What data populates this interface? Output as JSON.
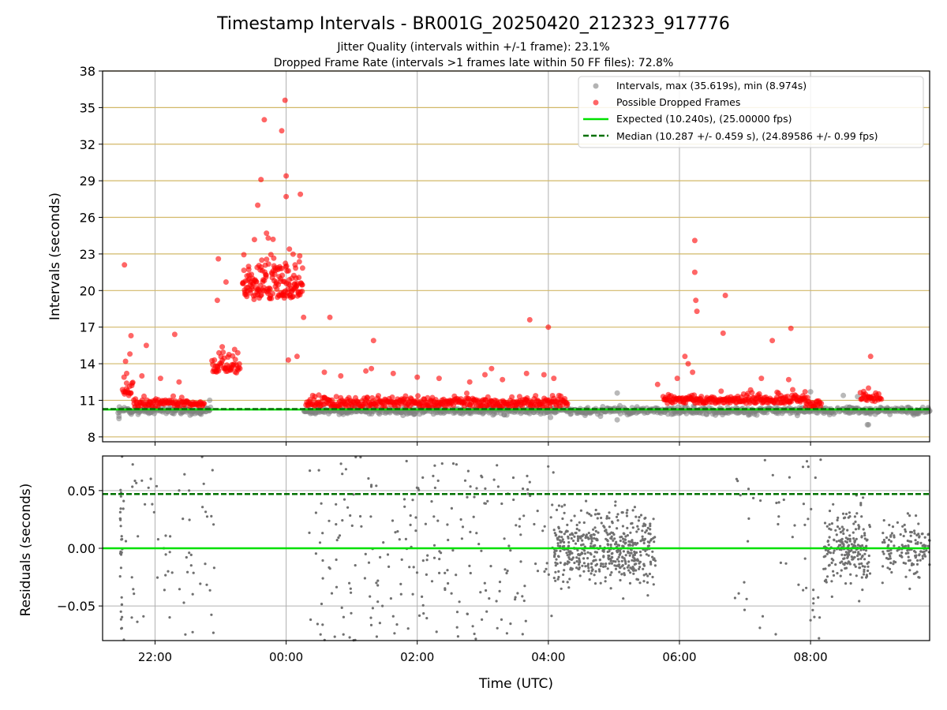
{
  "figure": {
    "title": "Timestamp Intervals - BR001G_20250420_212323_917776",
    "subtitle_1": "Jitter Quality (intervals within +/-1 frame): 23.1%",
    "subtitle_2": "Dropped Frame Rate (intervals >1 frames late within 50 FF files): 72.8%"
  },
  "chart_data": [
    {
      "type": "scatter",
      "ylabel": "Intervals (seconds)",
      "xlabel": "",
      "ylim": [
        7.6,
        38
      ],
      "xlim": [
        "21:12",
        "09:49"
      ],
      "yticks": [
        8,
        11,
        14,
        17,
        20,
        23,
        26,
        29,
        32,
        35,
        38
      ],
      "grid": "x-vertical grey, y-horizontal gold",
      "legend_position": "top-right",
      "legend": [
        "Intervals, max (35.619s), min (8.974s)",
        "Possible Dropped Frames",
        "Expected (10.240s), (25.00000 fps)",
        "Median (10.287 +/- 0.459 s), (24.89586 +/- 0.99 fps)"
      ],
      "series": [
        {
          "name": "Intervals, max (35.619s), min (8.974s)",
          "color": "#808080",
          "kind": "points"
        },
        {
          "name": "Possible Dropped Frames",
          "color": "#ff0000",
          "kind": "points"
        },
        {
          "name": "Expected (10.240s), (25.00000 fps)",
          "color": "#00e000",
          "kind": "hline",
          "y": 10.24
        },
        {
          "name": "Median (10.287 +/- 0.459 s), (24.89586 +/- 0.99 fps)",
          "color": "#007000",
          "kind": "hline-dashed",
          "y": 10.287
        }
      ],
      "notable_points": [
        {
          "x": "21:32",
          "y": 22.1
        },
        {
          "x": "23:34",
          "y": 27.0
        },
        {
          "x": "23:37",
          "y": 29.1
        },
        {
          "x": "23:40",
          "y": 34.0
        },
        {
          "x": "23:56",
          "y": 33.1
        },
        {
          "x": "23:59",
          "y": 35.6
        },
        {
          "x": "00:00",
          "y": 29.4
        },
        {
          "x": "00:00",
          "y": 27.7
        },
        {
          "x": "00:13",
          "y": 27.9
        },
        {
          "x": "03:43",
          "y": 17.6
        },
        {
          "x": "04:00",
          "y": 17.0
        },
        {
          "x": "06:14",
          "y": 24.1
        },
        {
          "x": "06:14",
          "y": 21.5
        },
        {
          "x": "06:15",
          "y": 19.2
        },
        {
          "x": "06:42",
          "y": 19.6
        },
        {
          "x": "07:42",
          "y": 16.9
        },
        {
          "x": "08:55",
          "y": 14.6
        }
      ]
    },
    {
      "type": "scatter",
      "ylabel": "Residuals (seconds)",
      "xlabel": "Time (UTC)",
      "ylim": [
        -0.08,
        0.08
      ],
      "yticks": [
        "0.05",
        "0.00",
        "−0.05"
      ],
      "xticks": [
        "22:00",
        "00:00",
        "02:00",
        "04:00",
        "06:00",
        "08:00"
      ],
      "series": [
        {
          "name": "",
          "color": "#707070",
          "kind": "points"
        },
        {
          "name": "",
          "color": "#00e000",
          "kind": "hline",
          "y": 0.0
        },
        {
          "name": "",
          "color": "#007000",
          "kind": "hline-dashed",
          "y": 0.047
        }
      ]
    }
  ]
}
